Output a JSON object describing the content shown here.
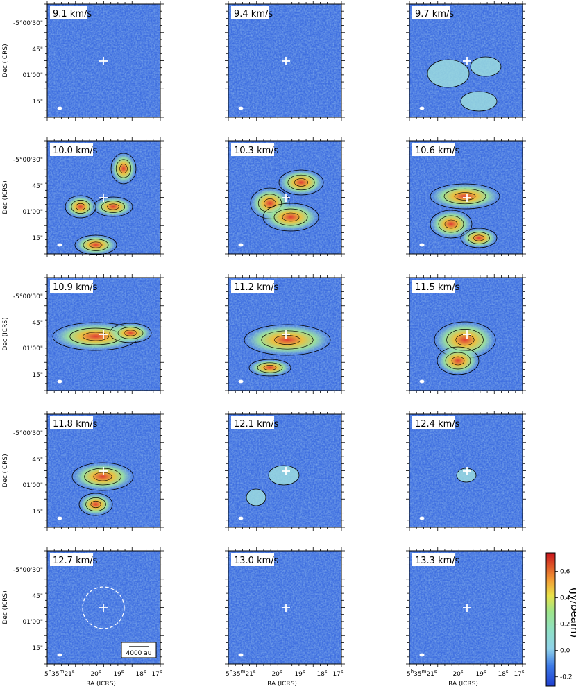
{
  "figure": {
    "panels": [
      {
        "label": "9.1 km/s",
        "intensity": 0.05
      },
      {
        "label": "9.4 km/s",
        "intensity": 0.08
      },
      {
        "label": "9.7 km/s",
        "intensity": 0.18
      },
      {
        "label": "10.0 km/s",
        "intensity": 0.45
      },
      {
        "label": "10.3 km/s",
        "intensity": 0.55
      },
      {
        "label": "10.6 km/s",
        "intensity": 0.5
      },
      {
        "label": "10.9 km/s",
        "intensity": 0.55
      },
      {
        "label": "11.2 km/s",
        "intensity": 0.5
      },
      {
        "label": "11.5 km/s",
        "intensity": 0.6
      },
      {
        "label": "11.8 km/s",
        "intensity": 0.7
      },
      {
        "label": "12.1 km/s",
        "intensity": 0.35
      },
      {
        "label": "12.4 km/s",
        "intensity": 0.2
      },
      {
        "label": "12.7 km/s",
        "intensity": 0.08
      },
      {
        "label": "13.0 km/s",
        "intensity": 0.05
      },
      {
        "label": "13.3 km/s",
        "intensity": 0.04
      }
    ],
    "dec_ticks": [
      "-5°00'30\"",
      "45\"",
      "01'00\"",
      "15\""
    ],
    "dec_label": "Dec (ICRS)",
    "ra_ticks": {
      "prefix": "5",
      "h": "h",
      "mid": "35",
      "m": "m",
      "sec": "21",
      "s": "s",
      "others": [
        "20",
        "19",
        "18",
        "17"
      ]
    },
    "ra_label": "RA (ICRS)",
    "scale_bar_label": "4000 au",
    "colorbar": {
      "label": "(Jy/beam)",
      "ticks": [
        "0.6",
        "0.4",
        "0.2",
        "0.0",
        "-0.2"
      ],
      "tick_values": [
        0.6,
        0.4,
        0.2,
        0.0,
        -0.2
      ],
      "range": [
        -0.27,
        0.74
      ]
    },
    "colors": {
      "low": "#2f5fd6",
      "mid": "#9fe0df",
      "high": "#e73a2a",
      "marker": "#ffffff",
      "contour": "#000000"
    }
  }
}
